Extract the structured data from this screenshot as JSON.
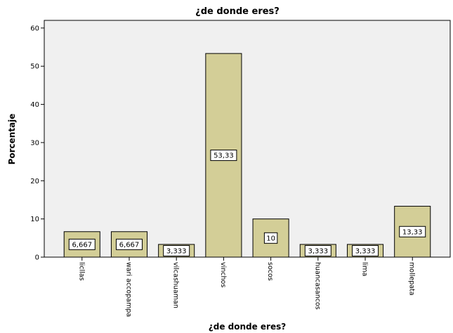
{
  "chart_data": {
    "type": "bar",
    "title": "¿de donde eres?",
    "xlabel": "¿de donde eres?",
    "ylabel": "Porcentaje",
    "categories": [
      "licllas",
      "wari accopampa",
      "vilcashuaman",
      "vinchos",
      "socos",
      "huancasancos",
      "lima",
      "mollepata"
    ],
    "values": [
      6.667,
      6.667,
      3.333,
      53.33,
      10,
      3.333,
      3.333,
      13.33
    ],
    "data_labels": [
      "6,667",
      "6,667",
      "3,333",
      "53,33",
      "10",
      "3,333",
      "3,333",
      "13,33"
    ],
    "ylim": [
      0,
      62
    ],
    "yticks": [
      0,
      10,
      20,
      30,
      40,
      50,
      60
    ],
    "ytick_labels": [
      "0",
      "10",
      "20",
      "30",
      "40",
      "50",
      "60"
    ],
    "grid": false,
    "colors": {
      "plot_background": "#f0f0f0",
      "bar_fill": "#d3ce97",
      "bar_stroke": "#000000",
      "label_box": "#ffffff"
    }
  }
}
